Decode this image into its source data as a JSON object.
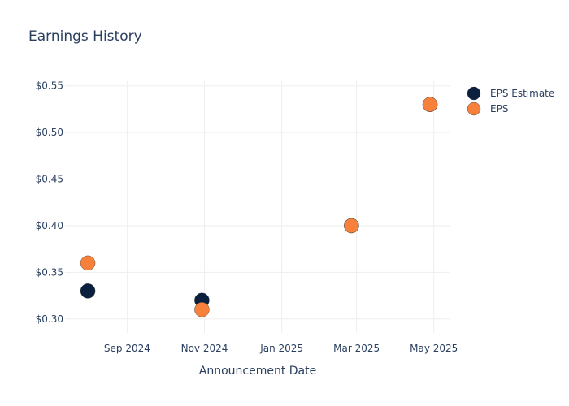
{
  "chart_data": {
    "type": "scatter",
    "title": "Earnings History",
    "xlabel": "Announcement Date",
    "ylabel": "",
    "x_ticks": [
      {
        "date": "2024-09-01",
        "label": "Sep 2024"
      },
      {
        "date": "2024-11-01",
        "label": "Nov 2024"
      },
      {
        "date": "2025-01-01",
        "label": "Jan 2025"
      },
      {
        "date": "2025-03-01",
        "label": "Mar 2025"
      },
      {
        "date": "2025-05-01",
        "label": "May 2025"
      }
    ],
    "xlim": [
      "2024-07-14",
      "2025-05-14"
    ],
    "y_ticks": [
      {
        "value": 0.3,
        "label": "$0.30"
      },
      {
        "value": 0.35,
        "label": "$0.35"
      },
      {
        "value": 0.4,
        "label": "$0.40"
      },
      {
        "value": 0.45,
        "label": "$0.45"
      },
      {
        "value": 0.5,
        "label": "$0.50"
      },
      {
        "value": 0.55,
        "label": "$0.55"
      }
    ],
    "ylim": [
      0.285,
      0.555
    ],
    "grid": true,
    "legend_position": "top-right",
    "series": [
      {
        "name": "EPS Estimate",
        "color": "#0b1f3f",
        "points": [
          {
            "x": "2024-08-01",
            "y": 0.33
          },
          {
            "x": "2024-10-30",
            "y": 0.32
          },
          {
            "x": "2025-02-25",
            "y": 0.4
          },
          {
            "x": "2025-04-28",
            "y": 0.53
          }
        ]
      },
      {
        "name": "EPS",
        "color": "#f7813a",
        "points": [
          {
            "x": "2024-08-01",
            "y": 0.36
          },
          {
            "x": "2024-10-30",
            "y": 0.31
          },
          {
            "x": "2025-02-25",
            "y": 0.4
          },
          {
            "x": "2025-04-28",
            "y": 0.53
          }
        ]
      }
    ]
  }
}
